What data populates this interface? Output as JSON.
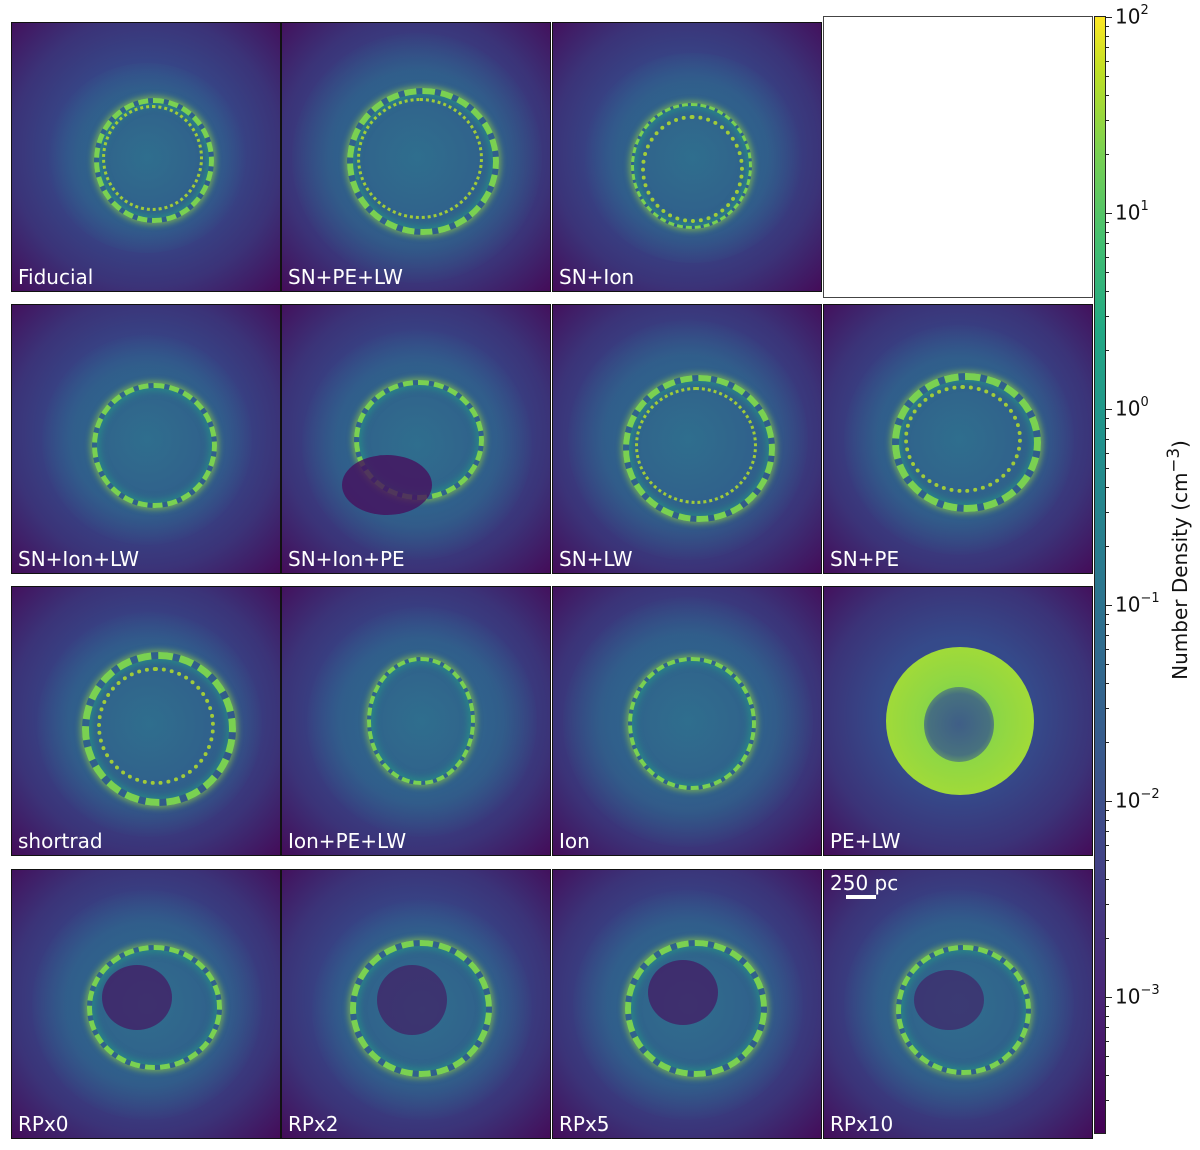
{
  "panels": [
    {
      "label": "Fiducial"
    },
    {
      "label": "SN+PE+LW"
    },
    {
      "label": "SN+Ion"
    },
    {
      "label": ""
    },
    {
      "label": "SN+Ion+LW"
    },
    {
      "label": "SN+Ion+PE"
    },
    {
      "label": "SN+LW"
    },
    {
      "label": "SN+PE"
    },
    {
      "label": "shortrad"
    },
    {
      "label": "Ion+PE+LW"
    },
    {
      "label": "Ion"
    },
    {
      "label": "PE+LW"
    },
    {
      "label": "RPx0"
    },
    {
      "label": "RPx2"
    },
    {
      "label": "RPx5"
    },
    {
      "label": "RPx10"
    }
  ],
  "colorbar": {
    "title": "Number Density (cm",
    "title_sup": "−3",
    "title_end": ")",
    "ticks": [
      {
        "base": "10",
        "exp": "2"
      },
      {
        "base": "10",
        "exp": "1"
      },
      {
        "base": "10",
        "exp": "0"
      },
      {
        "base": "10",
        "exp": "−1"
      },
      {
        "base": "10",
        "exp": "−2"
      },
      {
        "base": "10",
        "exp": "−3"
      }
    ],
    "colormap": "viridis"
  },
  "scalebar": {
    "label": "250 pc"
  }
}
